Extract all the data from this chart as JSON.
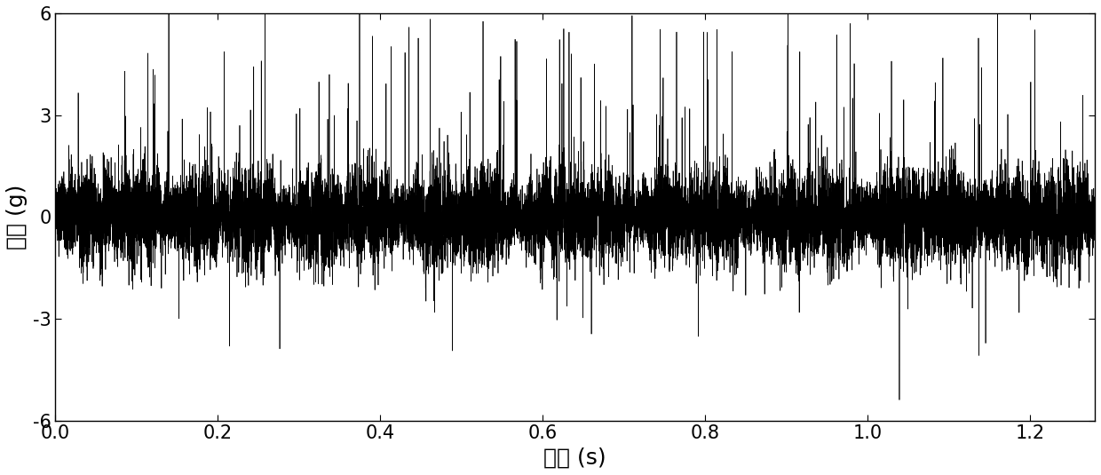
{
  "title": "",
  "xlabel": "时间 (s)",
  "ylabel": "幅値 (g)",
  "xlim": [
    0,
    1.28
  ],
  "ylim": [
    -6,
    6
  ],
  "yticks": [
    -6,
    -3,
    0,
    3,
    6
  ],
  "xticks": [
    0,
    0.2,
    0.4,
    0.6,
    0.8,
    1.0,
    1.2
  ],
  "line_color": "#000000",
  "bg_color": "#ffffff",
  "n_samples": 16384,
  "sample_rate": 12800,
  "seed": 42,
  "signal_duration": 1.28,
  "linewidth": 0.5,
  "xlabel_fontsize": 18,
  "ylabel_fontsize": 18,
  "tick_fontsize": 15
}
